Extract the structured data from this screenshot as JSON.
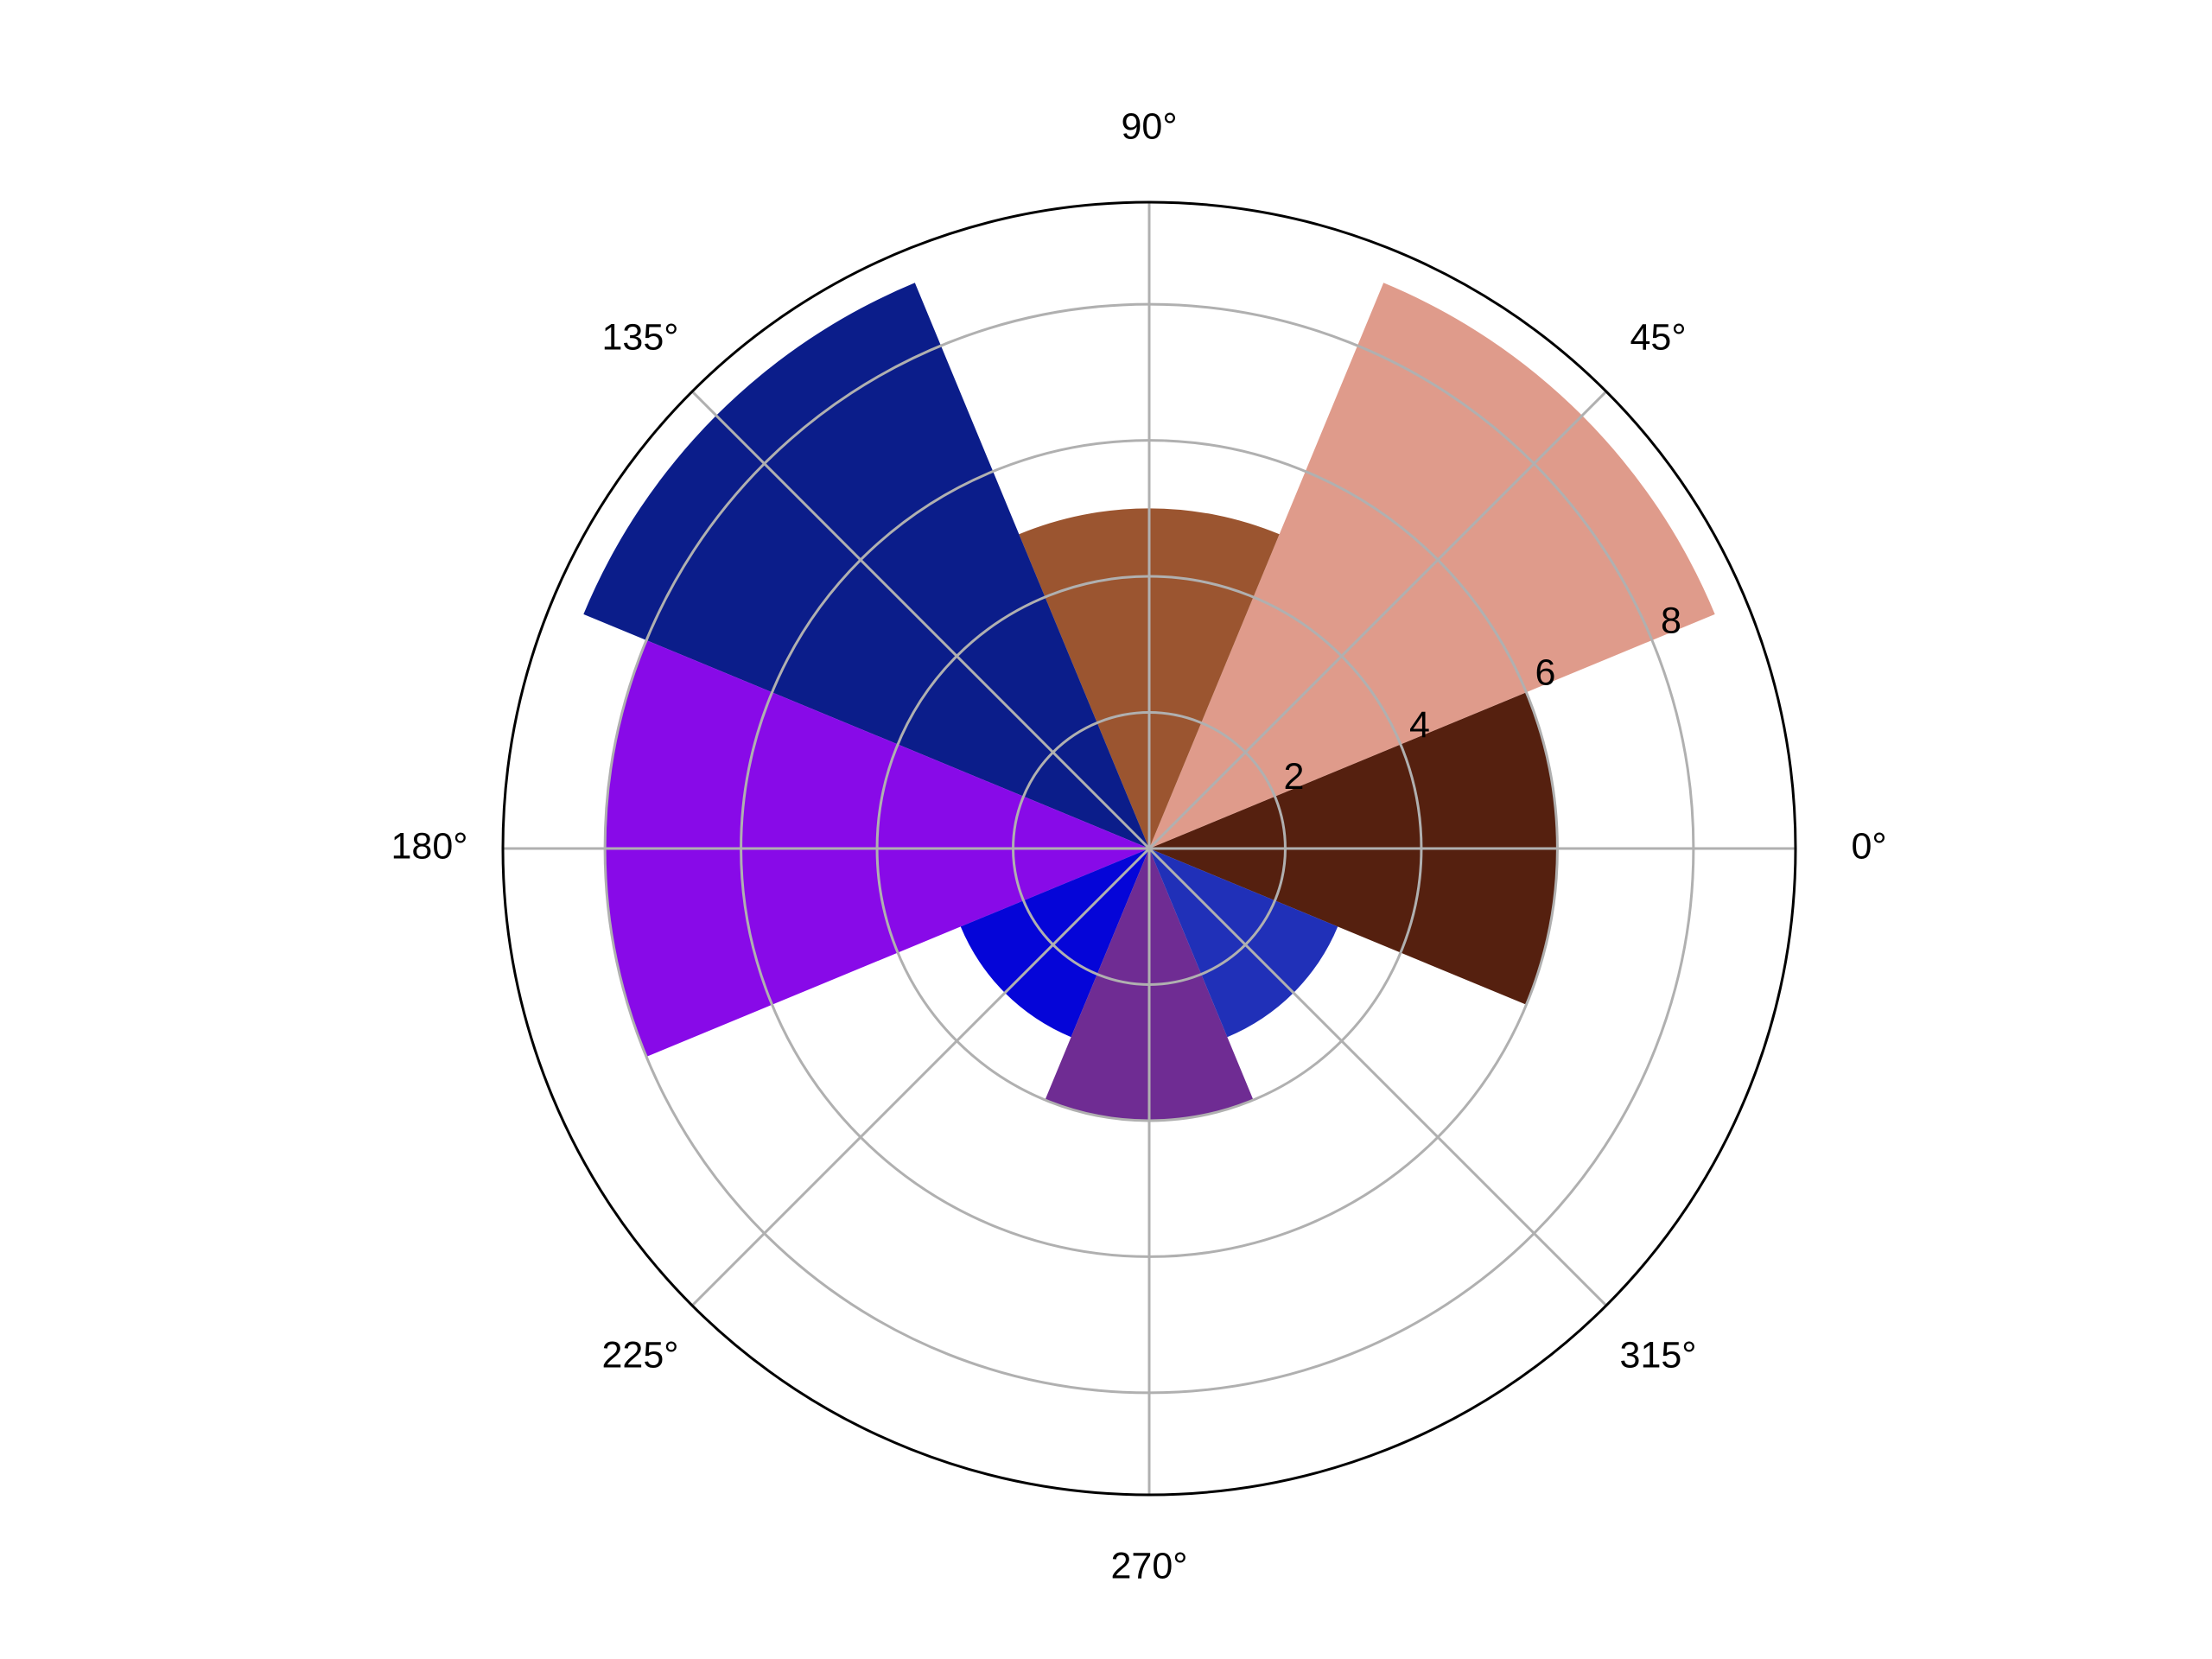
{
  "chart_data": {
    "type": "polar_bar",
    "x": [
      0,
      45,
      90,
      135,
      180,
      225,
      270,
      315
    ],
    "values": [
      6,
      9,
      5,
      9,
      8,
      3,
      4,
      3
    ],
    "colors": [
      "#55200f",
      "#df9b8b",
      "#9b5530",
      "#0b1d8a",
      "#880ae8",
      "#0505d8",
      "#6f2c93",
      "#2030b8"
    ],
    "xticks": [
      {
        "value": 0,
        "label": "0°"
      },
      {
        "value": 45,
        "label": "45°"
      },
      {
        "value": 90,
        "label": "90°"
      },
      {
        "value": 135,
        "label": "135°"
      },
      {
        "value": 180,
        "label": "180°"
      },
      {
        "value": 225,
        "label": "225°"
      },
      {
        "value": 270,
        "label": "270°"
      },
      {
        "value": 315,
        "label": "315°"
      }
    ],
    "ylim": [
      0,
      9.5
    ],
    "yticks": [
      2,
      4,
      6,
      8
    ],
    "grid": true
  }
}
